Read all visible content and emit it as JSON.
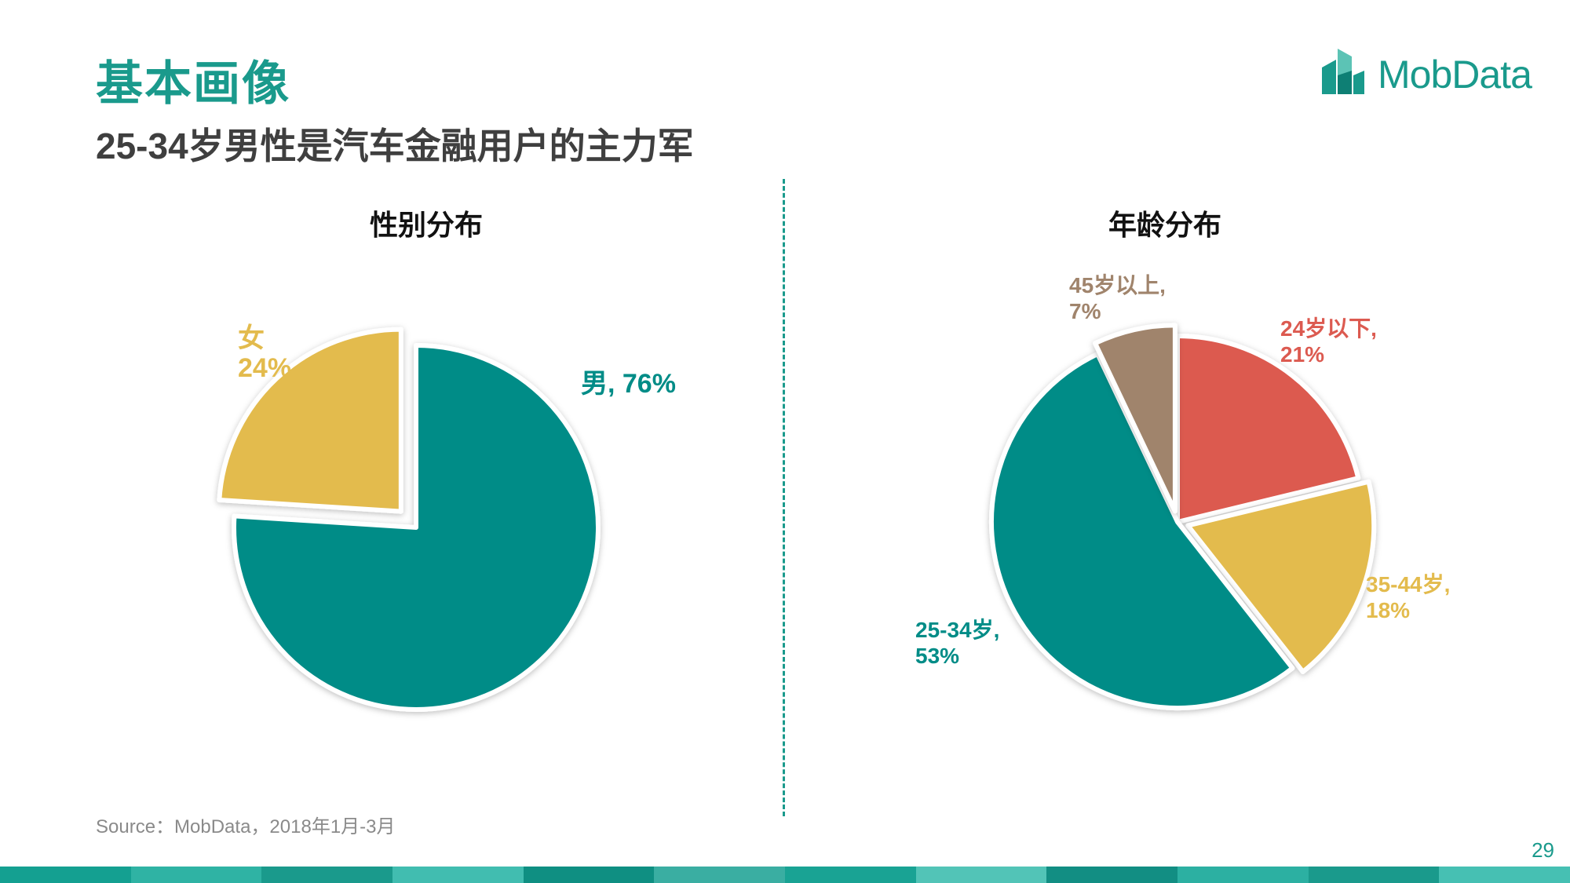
{
  "page": {
    "title": "基本画像",
    "subtitle": "25-34岁男性是汽车金融用户的主力军",
    "logo_text": "MobData",
    "source": "Source：MobData，2018年1月-3月",
    "page_number": "29",
    "accent_color": "#1a9a8c"
  },
  "chart_data": [
    {
      "type": "pie",
      "title": "性别分布",
      "slices": [
        {
          "label": "男",
          "value": 76,
          "label_text": "男, 76%",
          "color": "#008c87",
          "exploded": false
        },
        {
          "label": "女",
          "value": 24,
          "label_text": "女\n24%",
          "color": "#e3bb4d",
          "exploded": true
        }
      ]
    },
    {
      "type": "pie",
      "title": "年龄分布",
      "slices": [
        {
          "label": "24岁以下",
          "value": 21,
          "label_text": "24岁以下,\n21%",
          "color": "#dc5a50",
          "exploded": false
        },
        {
          "label": "35-44岁",
          "value": 18,
          "label_text": "35-44岁,\n18%",
          "color": "#e3bb4d",
          "exploded": true
        },
        {
          "label": "25-34岁",
          "value": 53,
          "label_text": "25-34岁,\n53%",
          "color": "#008c87",
          "exploded": false
        },
        {
          "label": "45岁以上",
          "value": 7,
          "label_text": "45岁以上,\n7%",
          "color": "#a0846c",
          "exploded": true
        }
      ]
    }
  ]
}
